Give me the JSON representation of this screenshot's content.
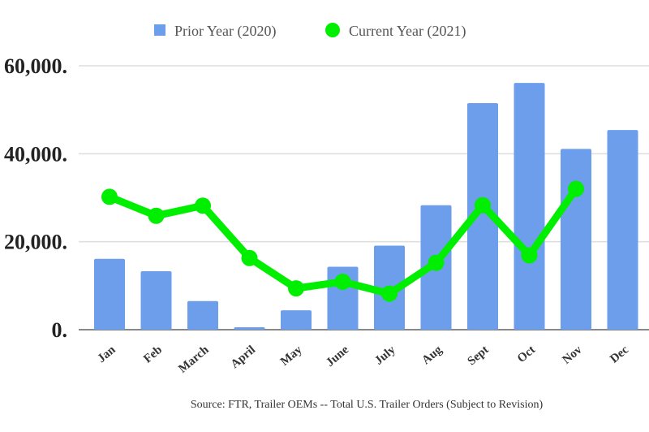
{
  "chart_data": {
    "type": "bar",
    "categories": [
      "Jan",
      "Feb",
      "March",
      "April",
      "May",
      "June",
      "July",
      "Aug",
      "Sept",
      "Oct",
      "Nov",
      "Dec"
    ],
    "series": [
      {
        "name": "Prior Year (2020)",
        "type": "bar",
        "color": "#6d9eeb",
        "values": [
          16100,
          13300,
          6500,
          550,
          4400,
          14300,
          19100,
          28300,
          51500,
          56100,
          41100,
          45400
        ]
      },
      {
        "name": "Current Year (2021)",
        "type": "line",
        "color": "#00ee00",
        "values": [
          30200,
          25900,
          28200,
          16300,
          9400,
          10900,
          8200,
          15200,
          28300,
          16900,
          32000,
          null
        ]
      }
    ],
    "yticks": [
      "0.",
      "20,000.",
      "40,000.",
      "60,000."
    ],
    "ytick_values": [
      0,
      20000,
      40000,
      60000
    ],
    "ylim": [
      0,
      60000
    ],
    "grid": true,
    "legend": "top",
    "source": "Source: FTR, Trailer OEMs -- Total U.S. Trailer Orders (Subject to Revision)"
  }
}
